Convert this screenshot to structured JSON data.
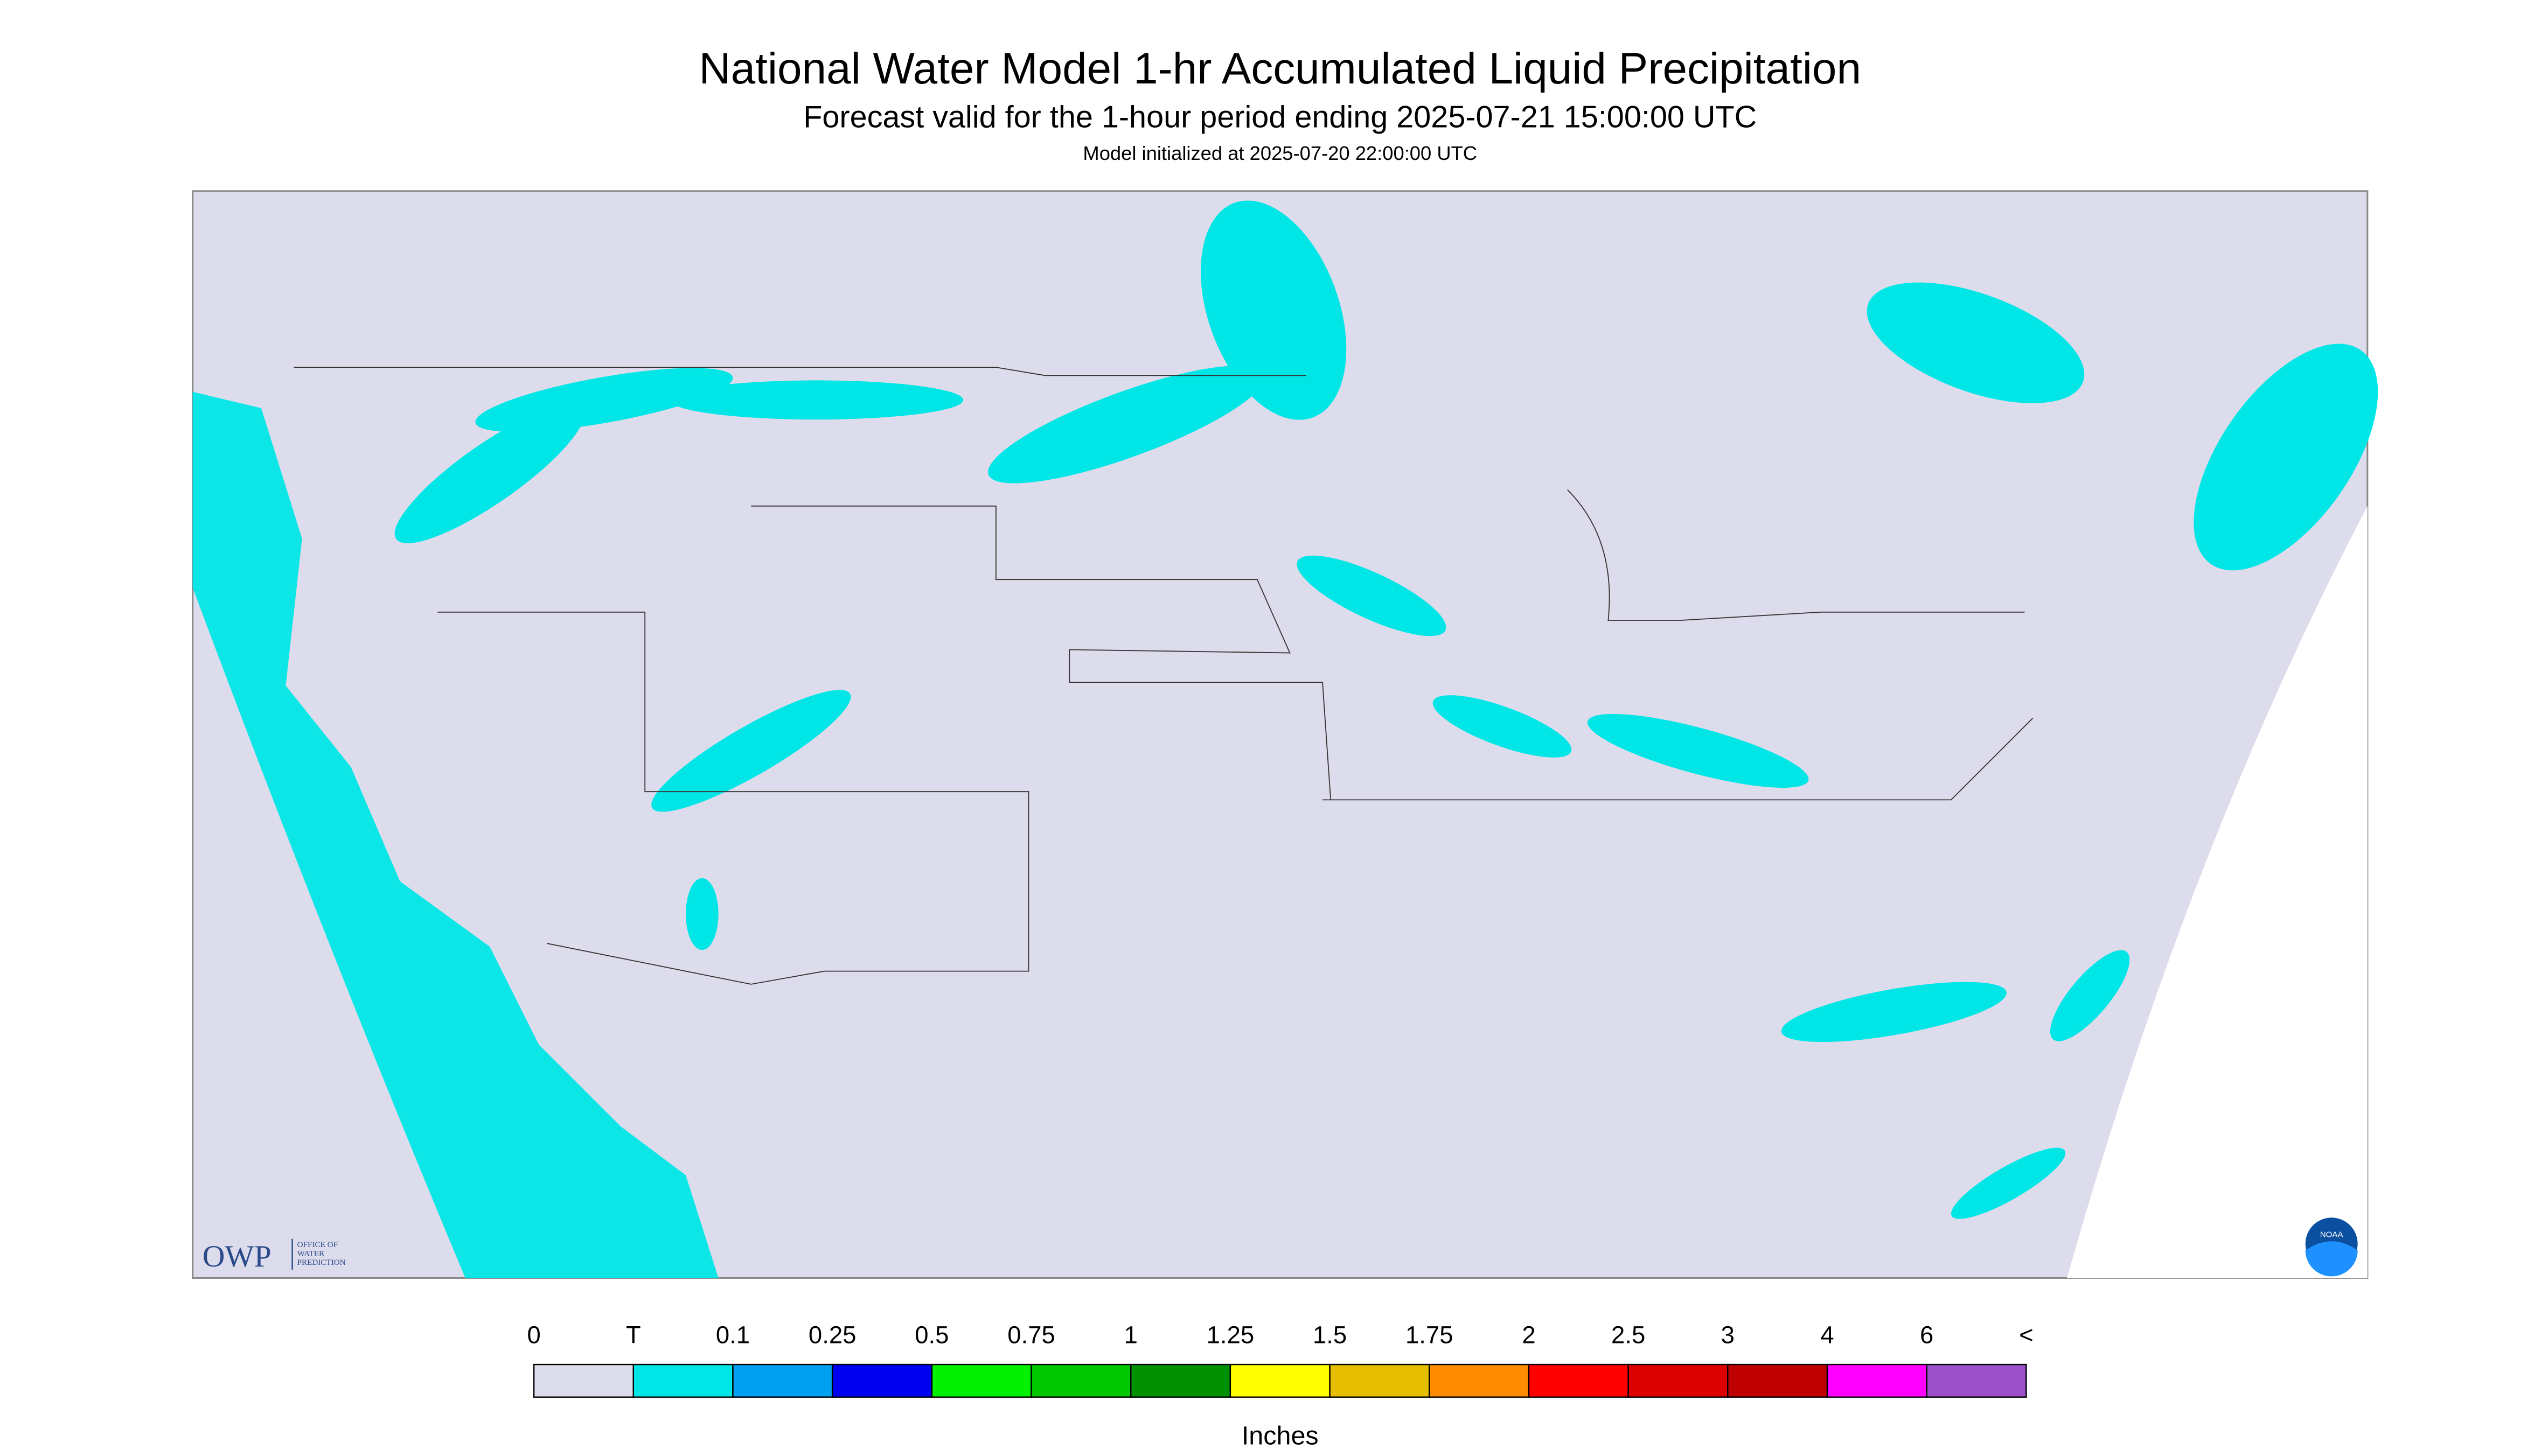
{
  "header": {
    "title": "National Water Model 1-hr Accumulated Liquid Precipitation",
    "subtitle": "Forecast valid for the 1-hour period ending 2025-07-21 15:00:00 UTC",
    "init": "Model initialized at 2025-07-20 22:00:00 UTC"
  },
  "legend": {
    "labels": [
      "0",
      "T",
      "0.1",
      "0.25",
      "0.5",
      "0.75",
      "1",
      "1.25",
      "1.5",
      "1.75",
      "2",
      "2.5",
      "3",
      "4",
      "6",
      "<"
    ],
    "colors": [
      "#dcdcec",
      "#00e6e6",
      "#00a0f0",
      "#0000f0",
      "#00f000",
      "#00c800",
      "#009000",
      "#ffff00",
      "#e6be00",
      "#ff8c00",
      "#ff0000",
      "#dc0000",
      "#be0000",
      "#ff00ff",
      "#9a50c8"
    ],
    "unit": "Inches"
  },
  "logos": {
    "owp": "OWP",
    "owp_sub": [
      "OFFICE OF",
      "WATER",
      "PREDICTION"
    ],
    "noaa": "NOAA"
  }
}
